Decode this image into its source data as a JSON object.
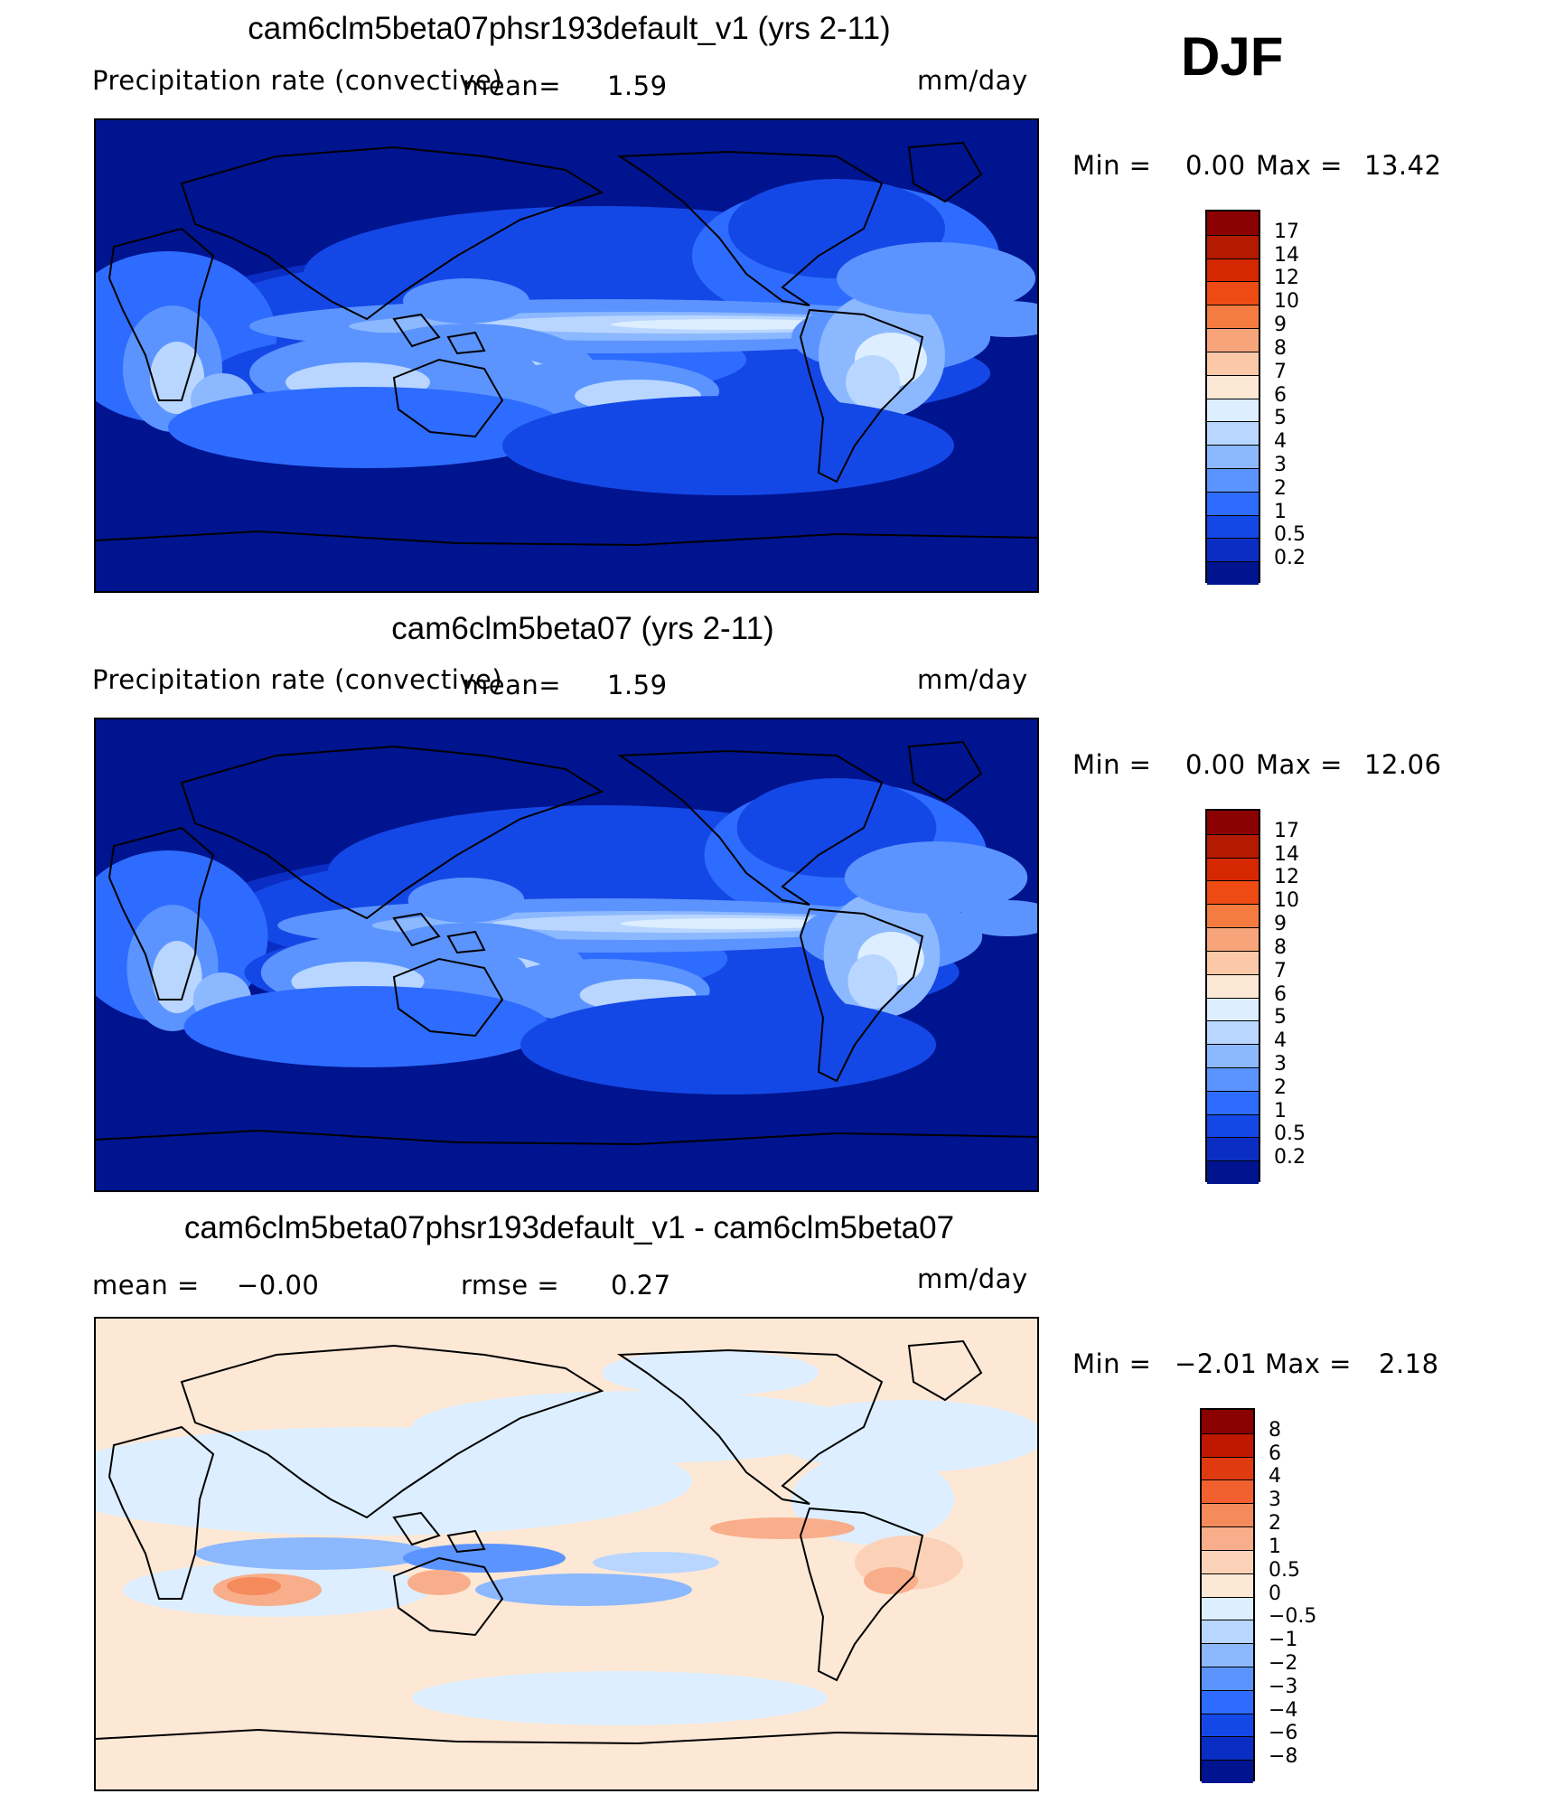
{
  "season": "DJF",
  "chart_data": [
    {
      "type": "heatmap",
      "title": "cam6clm5beta07phsr193default_v1 (yrs 2-11)",
      "variable": "Precipitation rate (convective)",
      "units": "mm/day",
      "mean_label": "mean=",
      "mean": "1.59",
      "min_label": "Min =",
      "min": "0.00",
      "max_label": "Max =",
      "max": "13.42",
      "colorbar": {
        "levels": [
          "17",
          "14",
          "12",
          "10",
          "9",
          "8",
          "7",
          "6",
          "5",
          "4",
          "3",
          "2",
          "1",
          "0.5",
          "0.2"
        ],
        "colors": [
          "#8b0000",
          "#b31a00",
          "#d62800",
          "#ee4a14",
          "#f47c40",
          "#f7a47a",
          "#fbc8a8",
          "#fde8d6",
          "#dceeff",
          "#b8d6ff",
          "#8cb8ff",
          "#5c94ff",
          "#2e6cff",
          "#1448e6",
          "#0a2ec4",
          "#001490"
        ]
      }
    },
    {
      "type": "heatmap",
      "title": "cam6clm5beta07 (yrs 2-11)",
      "variable": "Precipitation rate (convective)",
      "units": "mm/day",
      "mean_label": "mean=",
      "mean": "1.59",
      "min_label": "Min =",
      "min": "0.00",
      "max_label": "Max =",
      "max": "12.06",
      "colorbar": {
        "levels": [
          "17",
          "14",
          "12",
          "10",
          "9",
          "8",
          "7",
          "6",
          "5",
          "4",
          "3",
          "2",
          "1",
          "0.5",
          "0.2"
        ],
        "colors": [
          "#8b0000",
          "#b31a00",
          "#d62800",
          "#ee4a14",
          "#f47c40",
          "#f7a47a",
          "#fbc8a8",
          "#fde8d6",
          "#dceeff",
          "#b8d6ff",
          "#8cb8ff",
          "#5c94ff",
          "#2e6cff",
          "#1448e6",
          "#0a2ec4",
          "#001490"
        ]
      }
    },
    {
      "type": "heatmap",
      "title": "cam6clm5beta07phsr193default_v1 - cam6clm5beta07",
      "units": "mm/day",
      "mean_label": "mean =",
      "mean": "−0.00",
      "rmse_label": "rmse =",
      "rmse": "0.27",
      "min_label": "Min =",
      "min": "−2.01",
      "max_label": "Max =",
      "max": "2.18",
      "colorbar": {
        "levels": [
          "8",
          "6",
          "4",
          "3",
          "2",
          "1",
          "0.5",
          "0",
          "−0.5",
          "−1",
          "−2",
          "−3",
          "−4",
          "−6",
          "−8"
        ],
        "colors": [
          "#8b0000",
          "#c01800",
          "#e03a10",
          "#f26030",
          "#f58a5c",
          "#f8ae8a",
          "#fbd2b8",
          "#fde8d6",
          "#dceeff",
          "#b8d6ff",
          "#8cb8ff",
          "#5c94ff",
          "#2e6cff",
          "#1448e6",
          "#0a2ec4",
          "#001490"
        ]
      }
    }
  ]
}
